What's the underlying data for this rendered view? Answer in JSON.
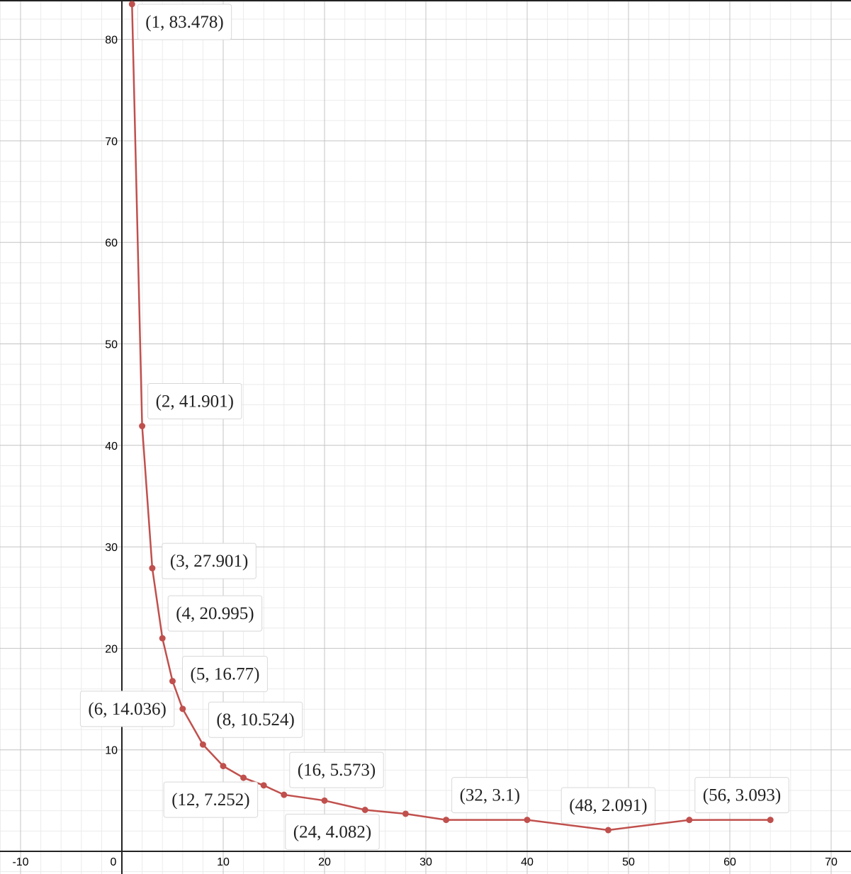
{
  "chart_data": {
    "type": "line",
    "title": "",
    "xlabel": "",
    "ylabel": "",
    "xlim": [
      -12,
      72
    ],
    "ylim": [
      -2,
      84
    ],
    "x_ticks": [
      -10,
      0,
      10,
      20,
      30,
      40,
      50,
      60,
      70
    ],
    "y_ticks": [
      10,
      20,
      30,
      40,
      50,
      60,
      70,
      80
    ],
    "grid": true,
    "line_color": "#c0504d",
    "series": [
      {
        "points": [
          {
            "x": 1,
            "y": 83.478
          },
          {
            "x": 2,
            "y": 41.901
          },
          {
            "x": 3,
            "y": 27.901
          },
          {
            "x": 4,
            "y": 20.995
          },
          {
            "x": 5,
            "y": 16.77
          },
          {
            "x": 6,
            "y": 14.036
          },
          {
            "x": 8,
            "y": 10.524
          },
          {
            "x": 10,
            "y": 8.4
          },
          {
            "x": 12,
            "y": 7.252
          },
          {
            "x": 14,
            "y": 6.5
          },
          {
            "x": 16,
            "y": 5.573
          },
          {
            "x": 20,
            "y": 5.0
          },
          {
            "x": 24,
            "y": 4.082
          },
          {
            "x": 28,
            "y": 3.7
          },
          {
            "x": 32,
            "y": 3.1
          },
          {
            "x": 40,
            "y": 3.1
          },
          {
            "x": 48,
            "y": 2.091
          },
          {
            "x": 56,
            "y": 3.093
          },
          {
            "x": 64,
            "y": 3.1
          }
        ]
      }
    ],
    "point_labels": [
      {
        "text": "(1, 83.478)",
        "x": 1,
        "y": 83.478,
        "pos": "right-above"
      },
      {
        "text": "(2, 41.901)",
        "x": 2,
        "y": 41.901,
        "pos": "right-above"
      },
      {
        "text": "(3, 27.901)",
        "x": 3,
        "y": 27.901,
        "pos": "right"
      },
      {
        "text": "(4, 20.995)",
        "x": 4,
        "y": 20.995,
        "pos": "right-above"
      },
      {
        "text": "(5, 16.77)",
        "x": 5,
        "y": 16.77,
        "pos": "right"
      },
      {
        "text": "(6, 14.036)",
        "x": 6,
        "y": 14.036,
        "pos": "left"
      },
      {
        "text": "(8, 10.524)",
        "x": 8,
        "y": 10.524,
        "pos": "right-above"
      },
      {
        "text": "(12, 7.252)",
        "x": 12,
        "y": 7.252,
        "pos": "left-below"
      },
      {
        "text": "(16, 5.573)",
        "x": 16,
        "y": 5.573,
        "pos": "right-above"
      },
      {
        "text": "(24, 4.082)",
        "x": 24,
        "y": 4.082,
        "pos": "left-below"
      },
      {
        "text": "(32, 3.1)",
        "x": 32,
        "y": 3.1,
        "pos": "right-above"
      },
      {
        "text": "(48, 2.091)",
        "x": 48,
        "y": 2.091,
        "pos": "above"
      },
      {
        "text": "(56, 3.093)",
        "x": 56,
        "y": 3.093,
        "pos": "right-above"
      }
    ]
  }
}
